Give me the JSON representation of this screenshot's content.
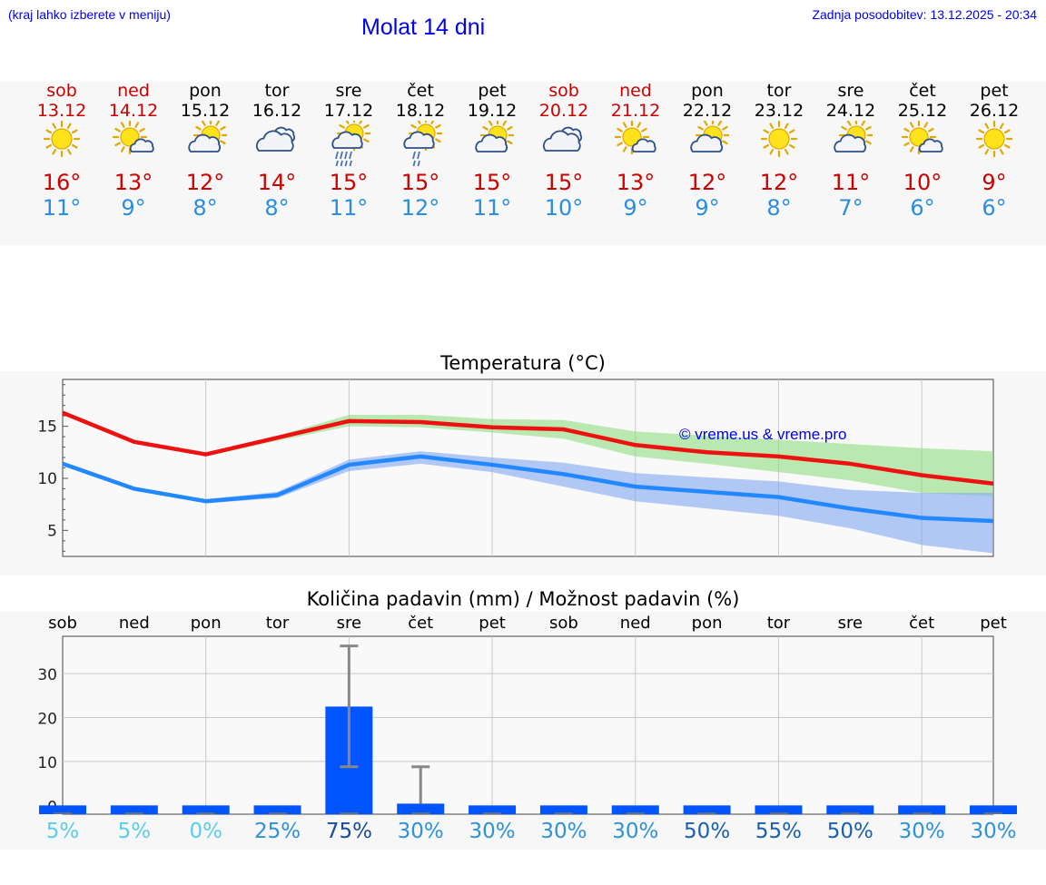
{
  "header": {
    "left_note": "(kraj lahko izberete v meniju)",
    "title": "Molat 14 dni",
    "updated": "Zadnja posodobitev: 13.12.2025 - 20:34"
  },
  "colors": {
    "link": "#0000ee",
    "tmax": "#cc0000",
    "tmin": "#2b8de0",
    "bar": "#0055ff"
  },
  "days": [
    {
      "name": "sob",
      "date": "13.12",
      "weekend": true,
      "icon": "sun-icon",
      "tmax": "16°",
      "tmin": "11°"
    },
    {
      "name": "ned",
      "date": "14.12",
      "weekend": true,
      "icon": "sun-small-cloud-icon",
      "tmax": "13°",
      "tmin": "9°"
    },
    {
      "name": "pon",
      "date": "15.12",
      "weekend": false,
      "icon": "sun-cloud-icon",
      "tmax": "12°",
      "tmin": "8°"
    },
    {
      "name": "tor",
      "date": "16.12",
      "weekend": false,
      "icon": "overcast-icon",
      "tmax": "14°",
      "tmin": "8°"
    },
    {
      "name": "sre",
      "date": "17.12",
      "weekend": false,
      "icon": "sun-cloud-rain-icon",
      "tmax": "15°",
      "tmin": "11°"
    },
    {
      "name": "čet",
      "date": "18.12",
      "weekend": false,
      "icon": "sun-cloud-light-rain-icon",
      "tmax": "15°",
      "tmin": "12°"
    },
    {
      "name": "pet",
      "date": "19.12",
      "weekend": false,
      "icon": "sun-cloud-icon",
      "tmax": "15°",
      "tmin": "11°"
    },
    {
      "name": "sob",
      "date": "20.12",
      "weekend": true,
      "icon": "overcast-icon",
      "tmax": "15°",
      "tmin": "10°"
    },
    {
      "name": "ned",
      "date": "21.12",
      "weekend": true,
      "icon": "sun-small-cloud-icon",
      "tmax": "13°",
      "tmin": "9°"
    },
    {
      "name": "pon",
      "date": "22.12",
      "weekend": false,
      "icon": "sun-cloud-icon",
      "tmax": "12°",
      "tmin": "9°"
    },
    {
      "name": "tor",
      "date": "23.12",
      "weekend": false,
      "icon": "sun-icon",
      "tmax": "12°",
      "tmin": "8°"
    },
    {
      "name": "sre",
      "date": "24.12",
      "weekend": false,
      "icon": "sun-cloud-icon",
      "tmax": "11°",
      "tmin": "7°"
    },
    {
      "name": "čet",
      "date": "25.12",
      "weekend": false,
      "icon": "sun-small-cloud-icon",
      "tmax": "10°",
      "tmin": "6°"
    },
    {
      "name": "pet",
      "date": "26.12",
      "weekend": false,
      "icon": "sun-icon",
      "tmax": "9°",
      "tmin": "6°"
    }
  ],
  "chart_data": [
    {
      "type": "line",
      "title": "Temperatura (°C)",
      "watermark": "© vreme.us & vreme.pro",
      "ylim": [
        2.5,
        19.5
      ],
      "yticks": [
        5,
        10,
        15
      ],
      "series": [
        {
          "name": "max",
          "color": "#ee1111",
          "values": [
            16.3,
            13.5,
            12.3,
            13.9,
            15.5,
            15.4,
            14.9,
            14.7,
            13.2,
            12.5,
            12.1,
            11.4,
            10.3,
            9.5
          ],
          "band_low": [
            16.3,
            13.5,
            12.1,
            13.6,
            15.0,
            14.9,
            14.4,
            13.8,
            12.1,
            11.4,
            10.6,
            9.8,
            8.6,
            8.3
          ],
          "band_high": [
            16.3,
            13.5,
            12.4,
            14.1,
            16.1,
            16.1,
            15.7,
            15.6,
            14.5,
            14.1,
            13.7,
            13.3,
            12.9,
            12.6
          ]
        },
        {
          "name": "min",
          "color": "#2288ff",
          "values": [
            11.4,
            9.0,
            7.8,
            8.4,
            11.3,
            12.1,
            11.3,
            10.4,
            9.2,
            8.7,
            8.2,
            7.1,
            6.2,
            5.9
          ],
          "band_low": [
            11.4,
            9.0,
            7.6,
            8.1,
            10.7,
            11.4,
            10.6,
            9.2,
            7.8,
            7.1,
            6.4,
            5.2,
            3.6,
            2.8
          ],
          "band_high": [
            11.4,
            9.0,
            8.0,
            8.7,
            11.8,
            12.6,
            12.0,
            11.5,
            10.5,
            10.1,
            9.7,
            8.9,
            8.6,
            8.6
          ]
        }
      ]
    },
    {
      "type": "bar",
      "title": "Količina padavin (mm) / Možnost padavin (%)",
      "categories": [
        "sob",
        "ned",
        "pon",
        "tor",
        "sre",
        "čet",
        "pet",
        "sob",
        "ned",
        "pon",
        "tor",
        "sre",
        "čet",
        "pet"
      ],
      "values": [
        0,
        0,
        0,
        0,
        22.5,
        0.4,
        0,
        0,
        0,
        0,
        0,
        0,
        0,
        0
      ],
      "err_low": [
        0,
        0,
        0,
        0,
        8.8,
        0,
        0,
        0,
        0,
        0,
        0,
        0,
        0,
        0
      ],
      "err_high": [
        0,
        0,
        0,
        0,
        36.3,
        8.8,
        0,
        0,
        0,
        0,
        0,
        0,
        0,
        0
      ],
      "ylim": [
        -2,
        38.5
      ],
      "yticks": [
        0,
        10,
        20,
        30
      ],
      "probability": [
        "5%",
        "5%",
        "0%",
        "25%",
        "75%",
        "30%",
        "30%",
        "30%",
        "30%",
        "50%",
        "55%",
        "50%",
        "30%",
        "30%"
      ]
    }
  ]
}
